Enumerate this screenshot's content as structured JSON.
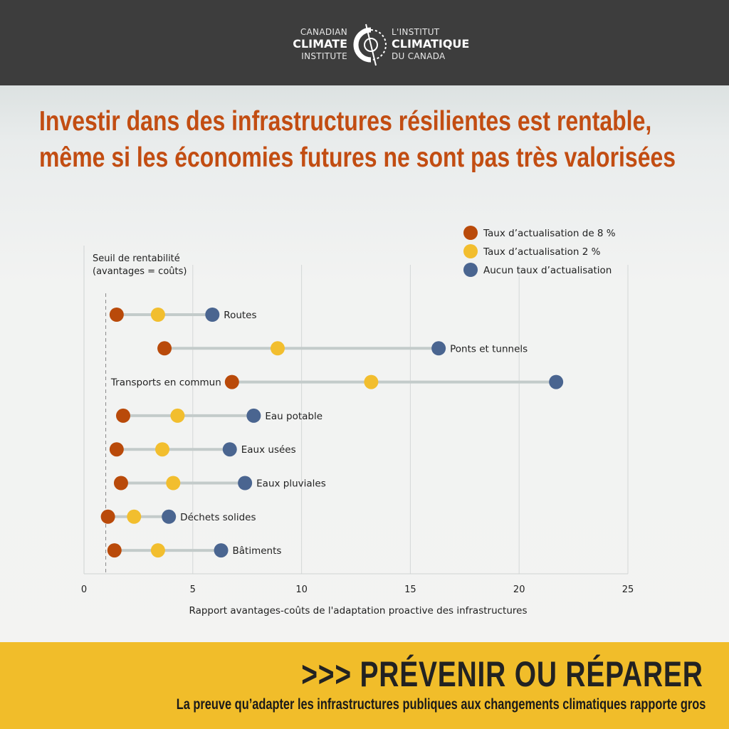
{
  "header": {
    "logo_en": [
      "CANADIAN",
      "CLIMATE",
      "INSTITUTE"
    ],
    "logo_fr": [
      "L'INSTITUT",
      "CLIMATIQUE",
      "DU CANADA"
    ]
  },
  "title": "Investir dans des infrastructures résilientes est rentable, même si les économies futures ne sont pas très valorisées",
  "chart_data": {
    "type": "dot-range",
    "xlabel": "Rapport avantages-coûts de l'adaptation proactive des infrastructures",
    "xlim": [
      0,
      25
    ],
    "xticks": [
      "0",
      "5",
      "10",
      "15",
      "20",
      "25"
    ],
    "grid": "vertical",
    "legend_placement": "top-right",
    "reference_line": {
      "x": 1,
      "label": [
        "Seuil de rentabilité",
        "(avantages = coûts)"
      ]
    },
    "categories": [
      "Routes",
      "Ponts et tunnels",
      "Transports en commun",
      "Eau potable",
      "Eaux usées",
      "Eaux pluviales",
      "Déchets solides",
      "Bâtiments"
    ],
    "series": [
      {
        "name": "Taux d’actualisation de 8 %",
        "color": "#b94a0a",
        "values": [
          1.5,
          3.7,
          6.8,
          1.8,
          1.5,
          1.7,
          1.1,
          1.4
        ]
      },
      {
        "name": "Taux d’actualisation 2 %",
        "color": "#f2be2e",
        "values": [
          3.4,
          8.9,
          13.2,
          4.3,
          3.6,
          4.1,
          2.3,
          3.4
        ]
      },
      {
        "name": "Aucun taux d’actualisation",
        "color": "#4a6590",
        "values": [
          5.9,
          16.3,
          21.7,
          7.8,
          6.7,
          7.4,
          3.9,
          6.3
        ]
      }
    ]
  },
  "footer": {
    "headline": ">>> PRÉVENIR OU RÉPARER",
    "subtitle": "La preuve qu’adapter les infrastructures publiques aux changements climatiques rapporte gros"
  }
}
